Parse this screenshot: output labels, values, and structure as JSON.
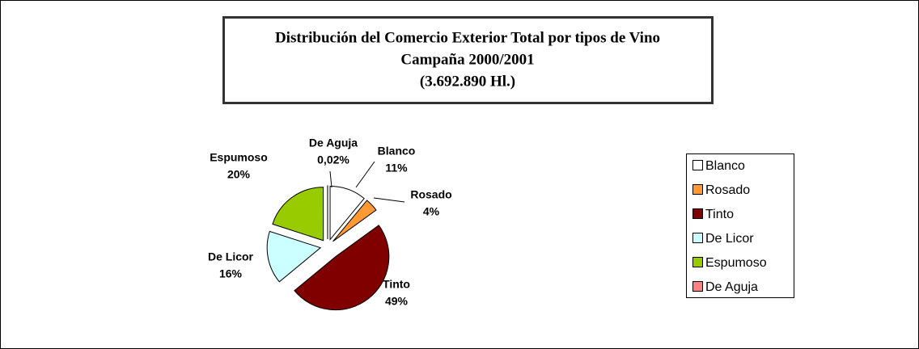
{
  "chart_data": {
    "type": "pie",
    "title_lines": [
      "Distribución del Comercio Exterior Total por tipos de Vino",
      "Campaña 2000/2001",
      "(3.692.890 Hl.)"
    ],
    "categories": [
      "Blanco",
      "Rosado",
      "Tinto",
      "De Licor",
      "Espumoso",
      "De Aguja"
    ],
    "values": [
      11,
      4,
      49,
      16,
      20,
      0.02
    ],
    "value_labels": [
      "11%",
      "4%",
      "49%",
      "16%",
      "20%",
      "0,02%"
    ],
    "colors": [
      "#ffffff",
      "#ff9933",
      "#800000",
      "#ccffff",
      "#99cc00",
      "#ff8080"
    ],
    "legend": "right"
  }
}
